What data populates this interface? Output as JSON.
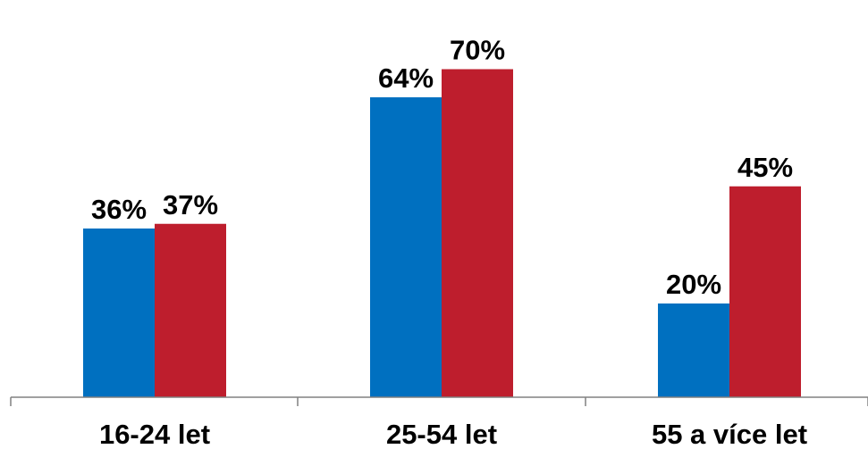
{
  "chart_data": {
    "type": "bar",
    "categories": [
      "16-24 let",
      "25-54 let",
      "55 a více let"
    ],
    "series": [
      {
        "values": [
          36,
          64,
          20
        ],
        "color": "#0070c0",
        "value_labels": [
          "36%",
          "64%",
          "20%"
        ]
      },
      {
        "values": [
          37,
          70,
          45
        ],
        "color": "#be1e2d",
        "value_labels": [
          "37%",
          "70%",
          "45%"
        ]
      }
    ],
    "ylim": [
      0,
      80
    ],
    "grid": false,
    "legend": "none"
  }
}
